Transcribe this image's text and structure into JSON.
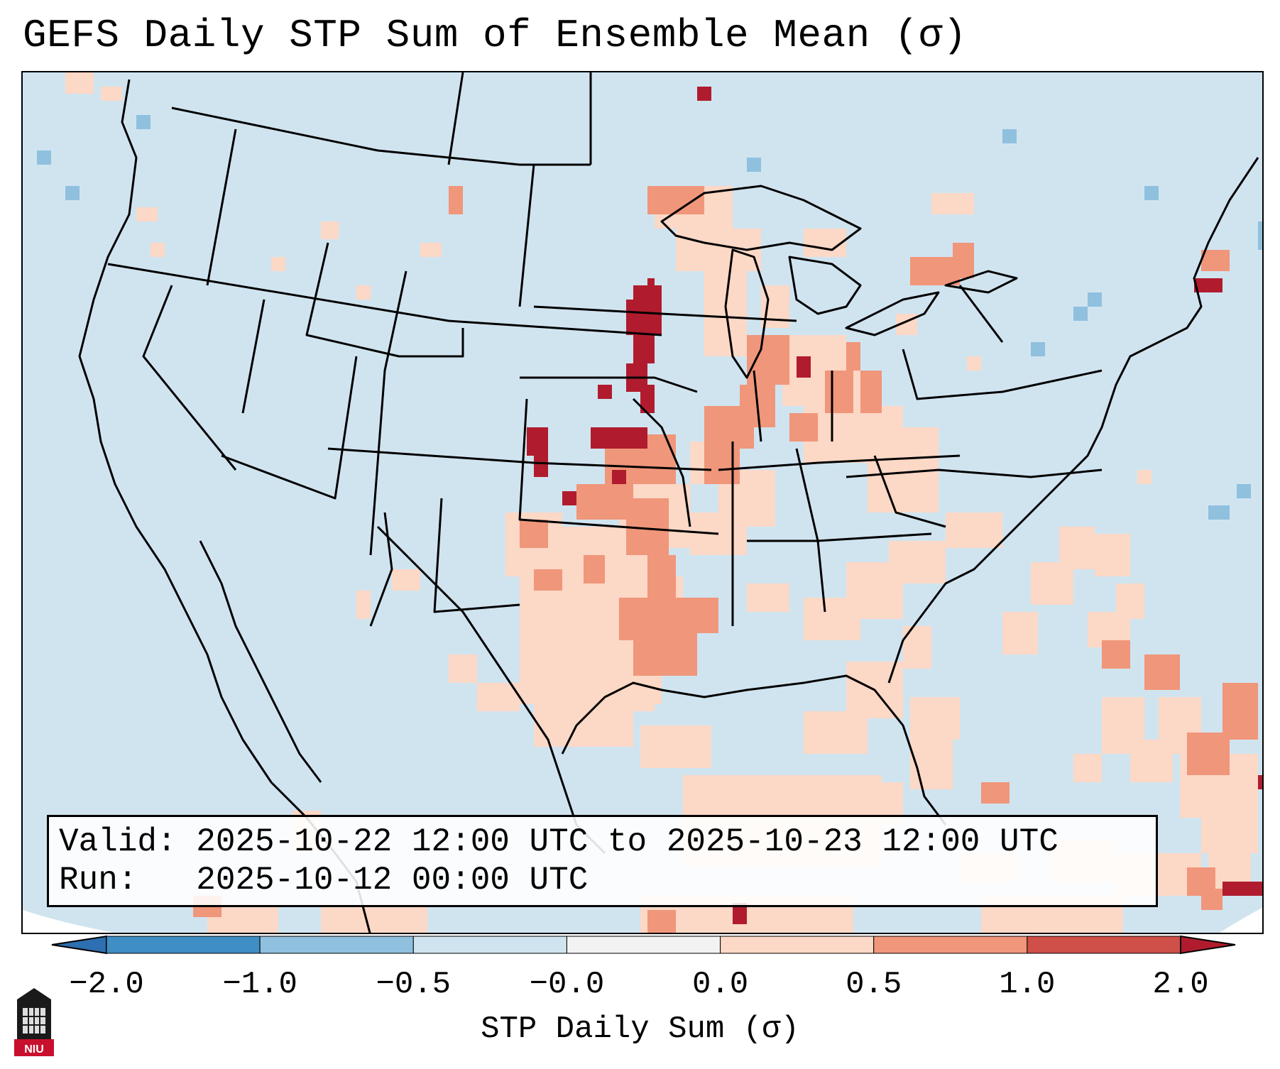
{
  "title": "GEFS Daily STP Sum of Ensemble Mean (σ)",
  "valid_line": "Valid: 2025-10-22 12:00 UTC to 2025-10-23 12:00 UTC",
  "run_line": "Run:   2025-10-12 00:00 UTC",
  "colorbar": {
    "label": "STP Daily Sum (σ)",
    "ticks": [
      "−2.0",
      "−1.0",
      "−0.5",
      "−0.0",
      "0.0",
      "0.5",
      "1.0",
      "2.0"
    ],
    "colors": [
      "#3f8ec4",
      "#8fc0de",
      "#d0e4f0",
      "#f2f2f2",
      "#fcd8c6",
      "#f0967a",
      "#cf4f49"
    ],
    "extend_min_color": "#2d6fb0",
    "extend_max_color": "#b01c2e"
  },
  "map": {
    "background_color": "#d0e4f0",
    "projection_edge_color": "#ffffff",
    "logo": "NIU"
  }
}
